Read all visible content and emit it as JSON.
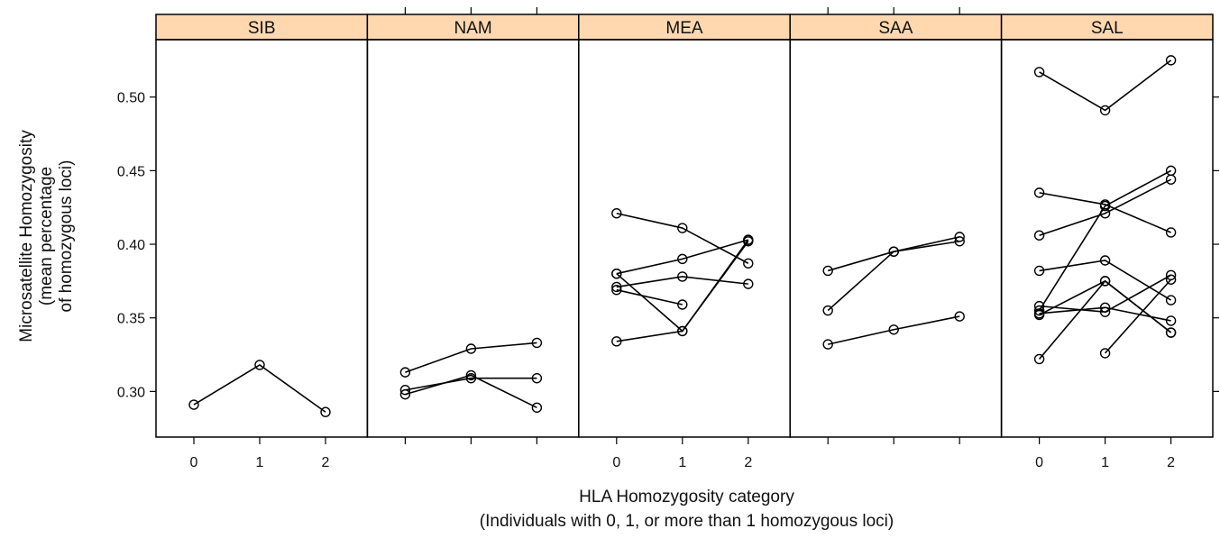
{
  "chart_data": {
    "type": "line",
    "ylabel": [
      "Microsatellite Homozygosity",
      "(mean percentage",
      "of homozygous loci)"
    ],
    "xlabel": [
      "HLA Homozygosity category",
      "(Individuals with 0, 1, or more than 1 homozygous loci)"
    ],
    "ylim": [
      0.269,
      0.539
    ],
    "yticks": [
      0.3,
      0.35,
      0.4,
      0.45,
      0.5
    ],
    "ytick_labels": [
      "0.30",
      "0.35",
      "0.40",
      "0.45",
      "0.50"
    ],
    "x_categories": [
      "0",
      "1",
      "2"
    ],
    "strip_color": "#ffd8b0",
    "panels": [
      {
        "name": "SIB",
        "series": [
          {
            "values": [
              0.291,
              0.318,
              0.286
            ]
          }
        ]
      },
      {
        "name": "NAM",
        "series": [
          {
            "values": [
              0.313,
              0.329,
              0.333
            ]
          },
          {
            "values": [
              0.301,
              0.309,
              0.309
            ]
          },
          {
            "values": [
              0.298,
              0.311,
              0.289
            ]
          }
        ]
      },
      {
        "name": "MEA",
        "series": [
          {
            "values": [
              0.421,
              0.411,
              0.387
            ]
          },
          {
            "values": [
              0.38,
              0.39,
              0.403
            ]
          },
          {
            "values": [
              0.38,
              0.341,
              0.403
            ]
          },
          {
            "values": [
              0.371,
              0.378,
              0.373
            ]
          },
          {
            "values": [
              0.369,
              0.359,
              null
            ]
          },
          {
            "values": [
              0.334,
              0.341,
              0.402
            ]
          }
        ]
      },
      {
        "name": "SAA",
        "series": [
          {
            "values": [
              0.382,
              0.395,
              0.402
            ]
          },
          {
            "values": [
              0.355,
              0.395,
              0.405
            ]
          },
          {
            "values": [
              0.332,
              0.342,
              0.351
            ]
          }
        ]
      },
      {
        "name": "SAL",
        "series": [
          {
            "values": [
              0.517,
              0.491,
              0.525
            ]
          },
          {
            "values": [
              0.435,
              0.427,
              0.408
            ]
          },
          {
            "values": [
              0.406,
              0.421,
              0.444
            ]
          },
          {
            "values": [
              0.382,
              0.389,
              0.362
            ]
          },
          {
            "values": [
              0.358,
              0.354,
              0.379
            ]
          },
          {
            "values": [
              0.355,
              0.426,
              0.45
            ]
          },
          {
            "values": [
              0.353,
              0.357,
              0.348
            ]
          },
          {
            "values": [
              0.352,
              0.375,
              0.34
            ]
          },
          {
            "values": [
              0.322,
              0.375,
              0.34
            ]
          },
          {
            "values": [
              null,
              0.326,
              0.376
            ]
          }
        ]
      }
    ]
  }
}
